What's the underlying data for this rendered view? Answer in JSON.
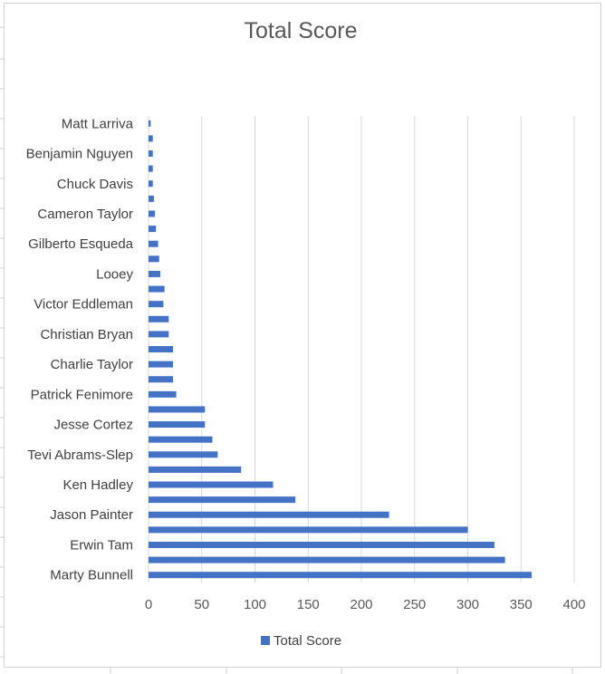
{
  "chart_data": {
    "type": "bar",
    "orientation": "horizontal",
    "title": "Total Score",
    "xlabel": "",
    "ylabel": "",
    "xlim": [
      0,
      400
    ],
    "xticks": [
      0,
      50,
      100,
      150,
      200,
      250,
      300,
      350,
      400
    ],
    "grid": "vertical",
    "legend_position": "bottom",
    "bar_color": "#4472C4",
    "categories": [
      "Marty Bunnell",
      "",
      "Erwin Tam",
      "",
      "Jason Painter",
      "",
      "Ken Hadley",
      "",
      "Tevi Abrams-Slep",
      "",
      "Jesse Cortez",
      "",
      "Patrick Fenimore",
      "",
      "Charlie Taylor",
      "",
      "Christian Bryan",
      "",
      "Victor Eddleman",
      "",
      "Looey",
      "",
      "Gilberto Esqueda",
      "",
      "Cameron Taylor",
      "",
      "Chuck Davis",
      "",
      "Benjamin Nguyen",
      "",
      "Matt Larriva"
    ],
    "series": [
      {
        "name": "Total Score",
        "values": [
          360,
          335,
          325,
          300,
          226,
          138,
          117,
          87,
          65,
          60,
          53,
          53,
          26,
          23,
          23,
          23,
          19,
          19,
          14,
          15,
          11,
          10,
          9,
          7,
          6,
          5,
          4,
          4,
          4,
          4,
          2
        ]
      }
    ]
  }
}
